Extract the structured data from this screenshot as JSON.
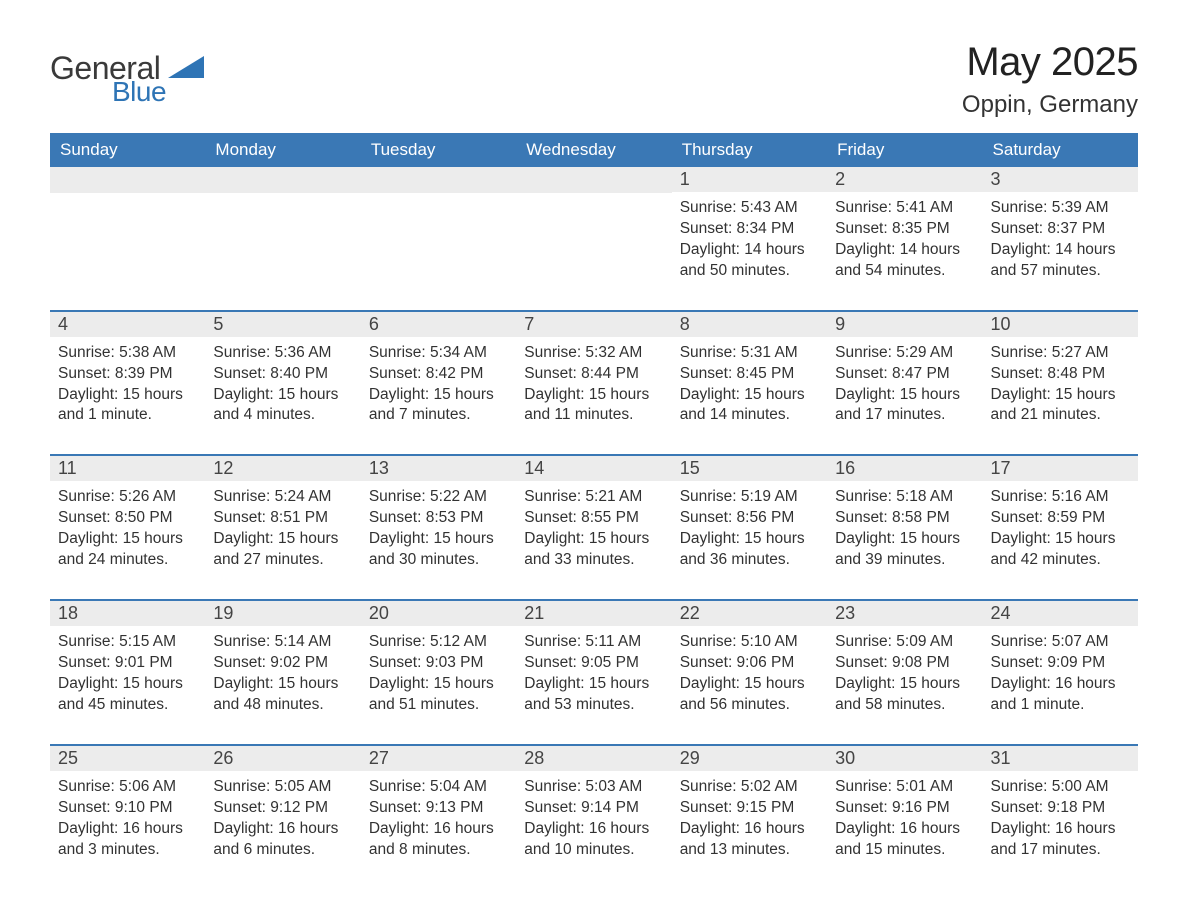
{
  "logo": {
    "general": "General",
    "blue": "Blue",
    "shape_color": "#2e74b5"
  },
  "title": {
    "month": "May 2025",
    "location": "Oppin, Germany"
  },
  "colors": {
    "header_bg": "#3a78b5",
    "header_text": "#ffffff",
    "daynum_bg": "#ececec",
    "rule_color": "#3a78b5",
    "body_text": "#323232",
    "page_bg": "#ffffff"
  },
  "day_labels": [
    "Sunday",
    "Monday",
    "Tuesday",
    "Wednesday",
    "Thursday",
    "Friday",
    "Saturday"
  ],
  "weeks": [
    [
      {
        "num": "",
        "sunrise": "",
        "sunset": "",
        "daylight_a": "",
        "daylight_b": ""
      },
      {
        "num": "",
        "sunrise": "",
        "sunset": "",
        "daylight_a": "",
        "daylight_b": ""
      },
      {
        "num": "",
        "sunrise": "",
        "sunset": "",
        "daylight_a": "",
        "daylight_b": ""
      },
      {
        "num": "",
        "sunrise": "",
        "sunset": "",
        "daylight_a": "",
        "daylight_b": ""
      },
      {
        "num": "1",
        "sunrise": "Sunrise: 5:43 AM",
        "sunset": "Sunset: 8:34 PM",
        "daylight_a": "Daylight: 14 hours",
        "daylight_b": "and 50 minutes."
      },
      {
        "num": "2",
        "sunrise": "Sunrise: 5:41 AM",
        "sunset": "Sunset: 8:35 PM",
        "daylight_a": "Daylight: 14 hours",
        "daylight_b": "and 54 minutes."
      },
      {
        "num": "3",
        "sunrise": "Sunrise: 5:39 AM",
        "sunset": "Sunset: 8:37 PM",
        "daylight_a": "Daylight: 14 hours",
        "daylight_b": "and 57 minutes."
      }
    ],
    [
      {
        "num": "4",
        "sunrise": "Sunrise: 5:38 AM",
        "sunset": "Sunset: 8:39 PM",
        "daylight_a": "Daylight: 15 hours",
        "daylight_b": "and 1 minute."
      },
      {
        "num": "5",
        "sunrise": "Sunrise: 5:36 AM",
        "sunset": "Sunset: 8:40 PM",
        "daylight_a": "Daylight: 15 hours",
        "daylight_b": "and 4 minutes."
      },
      {
        "num": "6",
        "sunrise": "Sunrise: 5:34 AM",
        "sunset": "Sunset: 8:42 PM",
        "daylight_a": "Daylight: 15 hours",
        "daylight_b": "and 7 minutes."
      },
      {
        "num": "7",
        "sunrise": "Sunrise: 5:32 AM",
        "sunset": "Sunset: 8:44 PM",
        "daylight_a": "Daylight: 15 hours",
        "daylight_b": "and 11 minutes."
      },
      {
        "num": "8",
        "sunrise": "Sunrise: 5:31 AM",
        "sunset": "Sunset: 8:45 PM",
        "daylight_a": "Daylight: 15 hours",
        "daylight_b": "and 14 minutes."
      },
      {
        "num": "9",
        "sunrise": "Sunrise: 5:29 AM",
        "sunset": "Sunset: 8:47 PM",
        "daylight_a": "Daylight: 15 hours",
        "daylight_b": "and 17 minutes."
      },
      {
        "num": "10",
        "sunrise": "Sunrise: 5:27 AM",
        "sunset": "Sunset: 8:48 PM",
        "daylight_a": "Daylight: 15 hours",
        "daylight_b": "and 21 minutes."
      }
    ],
    [
      {
        "num": "11",
        "sunrise": "Sunrise: 5:26 AM",
        "sunset": "Sunset: 8:50 PM",
        "daylight_a": "Daylight: 15 hours",
        "daylight_b": "and 24 minutes."
      },
      {
        "num": "12",
        "sunrise": "Sunrise: 5:24 AM",
        "sunset": "Sunset: 8:51 PM",
        "daylight_a": "Daylight: 15 hours",
        "daylight_b": "and 27 minutes."
      },
      {
        "num": "13",
        "sunrise": "Sunrise: 5:22 AM",
        "sunset": "Sunset: 8:53 PM",
        "daylight_a": "Daylight: 15 hours",
        "daylight_b": "and 30 minutes."
      },
      {
        "num": "14",
        "sunrise": "Sunrise: 5:21 AM",
        "sunset": "Sunset: 8:55 PM",
        "daylight_a": "Daylight: 15 hours",
        "daylight_b": "and 33 minutes."
      },
      {
        "num": "15",
        "sunrise": "Sunrise: 5:19 AM",
        "sunset": "Sunset: 8:56 PM",
        "daylight_a": "Daylight: 15 hours",
        "daylight_b": "and 36 minutes."
      },
      {
        "num": "16",
        "sunrise": "Sunrise: 5:18 AM",
        "sunset": "Sunset: 8:58 PM",
        "daylight_a": "Daylight: 15 hours",
        "daylight_b": "and 39 minutes."
      },
      {
        "num": "17",
        "sunrise": "Sunrise: 5:16 AM",
        "sunset": "Sunset: 8:59 PM",
        "daylight_a": "Daylight: 15 hours",
        "daylight_b": "and 42 minutes."
      }
    ],
    [
      {
        "num": "18",
        "sunrise": "Sunrise: 5:15 AM",
        "sunset": "Sunset: 9:01 PM",
        "daylight_a": "Daylight: 15 hours",
        "daylight_b": "and 45 minutes."
      },
      {
        "num": "19",
        "sunrise": "Sunrise: 5:14 AM",
        "sunset": "Sunset: 9:02 PM",
        "daylight_a": "Daylight: 15 hours",
        "daylight_b": "and 48 minutes."
      },
      {
        "num": "20",
        "sunrise": "Sunrise: 5:12 AM",
        "sunset": "Sunset: 9:03 PM",
        "daylight_a": "Daylight: 15 hours",
        "daylight_b": "and 51 minutes."
      },
      {
        "num": "21",
        "sunrise": "Sunrise: 5:11 AM",
        "sunset": "Sunset: 9:05 PM",
        "daylight_a": "Daylight: 15 hours",
        "daylight_b": "and 53 minutes."
      },
      {
        "num": "22",
        "sunrise": "Sunrise: 5:10 AM",
        "sunset": "Sunset: 9:06 PM",
        "daylight_a": "Daylight: 15 hours",
        "daylight_b": "and 56 minutes."
      },
      {
        "num": "23",
        "sunrise": "Sunrise: 5:09 AM",
        "sunset": "Sunset: 9:08 PM",
        "daylight_a": "Daylight: 15 hours",
        "daylight_b": "and 58 minutes."
      },
      {
        "num": "24",
        "sunrise": "Sunrise: 5:07 AM",
        "sunset": "Sunset: 9:09 PM",
        "daylight_a": "Daylight: 16 hours",
        "daylight_b": "and 1 minute."
      }
    ],
    [
      {
        "num": "25",
        "sunrise": "Sunrise: 5:06 AM",
        "sunset": "Sunset: 9:10 PM",
        "daylight_a": "Daylight: 16 hours",
        "daylight_b": "and 3 minutes."
      },
      {
        "num": "26",
        "sunrise": "Sunrise: 5:05 AM",
        "sunset": "Sunset: 9:12 PM",
        "daylight_a": "Daylight: 16 hours",
        "daylight_b": "and 6 minutes."
      },
      {
        "num": "27",
        "sunrise": "Sunrise: 5:04 AM",
        "sunset": "Sunset: 9:13 PM",
        "daylight_a": "Daylight: 16 hours",
        "daylight_b": "and 8 minutes."
      },
      {
        "num": "28",
        "sunrise": "Sunrise: 5:03 AM",
        "sunset": "Sunset: 9:14 PM",
        "daylight_a": "Daylight: 16 hours",
        "daylight_b": "and 10 minutes."
      },
      {
        "num": "29",
        "sunrise": "Sunrise: 5:02 AM",
        "sunset": "Sunset: 9:15 PM",
        "daylight_a": "Daylight: 16 hours",
        "daylight_b": "and 13 minutes."
      },
      {
        "num": "30",
        "sunrise": "Sunrise: 5:01 AM",
        "sunset": "Sunset: 9:16 PM",
        "daylight_a": "Daylight: 16 hours",
        "daylight_b": "and 15 minutes."
      },
      {
        "num": "31",
        "sunrise": "Sunrise: 5:00 AM",
        "sunset": "Sunset: 9:18 PM",
        "daylight_a": "Daylight: 16 hours",
        "daylight_b": "and 17 minutes."
      }
    ]
  ]
}
